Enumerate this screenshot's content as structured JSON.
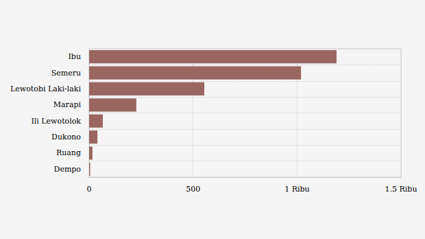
{
  "chart_data": {
    "type": "bar",
    "orientation": "horizontal",
    "categories": [
      "Ibu",
      "Semeru",
      "Lewotobi Laki-laki",
      "Marapi",
      "Ili Lewotolok",
      "Dukono",
      "Ruang",
      "Dempo"
    ],
    "values": [
      1190,
      1019,
      554,
      227,
      66,
      40,
      16,
      5
    ],
    "color": "#996760",
    "xlim": [
      0,
      1500
    ],
    "xticks": [
      0,
      500,
      {
        "value": 1000,
        "label": "1 Ribu"
      },
      {
        "value": 1500,
        "label": "1.5 Ribu"
      }
    ],
    "grid": true
  }
}
